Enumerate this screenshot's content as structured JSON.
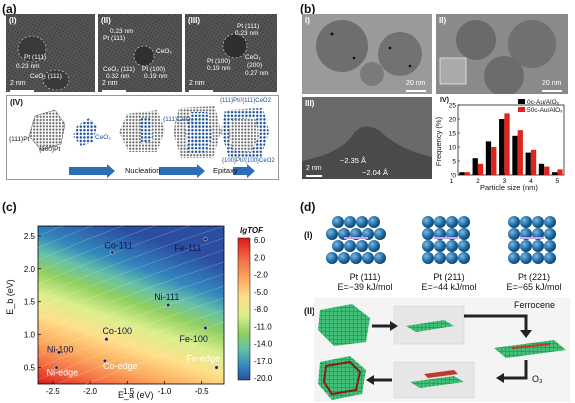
{
  "panels": {
    "a": {
      "label": "(a)",
      "tem": [
        {
          "roman": "(I)",
          "lines": [
            "Pt (111)",
            "0.23 nm",
            "CeO₂ (111)"
          ],
          "scale": "2 nm"
        },
        {
          "roman": "(II)",
          "lines": [
            "0.23 nm",
            "Pt (111)",
            "CeO₂",
            "CeO₂ (111)",
            "0.32 nm",
            "Pt (100)",
            "0.19 nm"
          ],
          "scale": "2 nm"
        },
        {
          "roman": "(III)",
          "lines": [
            "Pt (111)",
            "0.23 nm",
            "Pt (100)",
            "0.19 nm",
            "CeO₂",
            "(200)",
            "0.27 nm"
          ],
          "scale": "2 nm"
        }
      ],
      "scheme": {
        "roman": "(IV)",
        "labels": [
          "{111}Pt",
          "{100}Pt",
          "CeO₂",
          "{111}CeO₂",
          "{111}Pt//{111}CeO2",
          "{100}Pt//{100}CeO2"
        ],
        "steps": [
          "Nucleation",
          "Epitaxy"
        ]
      }
    },
    "b": {
      "label": "(b)",
      "images": [
        {
          "roman": "I)",
          "scale": "20 nm"
        },
        {
          "roman": "II)",
          "scale": "20 nm"
        },
        {
          "roman": "III)",
          "scale": "2 nm",
          "lines": [
            "~2.35 Å",
            "~2.04 Å"
          ]
        }
      ],
      "hist": {
        "roman": "IV)",
        "ylabel": "Frequency (%)",
        "xlabel": "Particle size (nm)",
        "legend": [
          "0c-Au/AlOₓ",
          "50c-Au/AlOₓ"
        ],
        "xticks": [
          "1",
          "2",
          "3",
          "4",
          "5"
        ],
        "yticks": [
          "0",
          "5",
          "10",
          "15",
          "20",
          "25"
        ]
      }
    },
    "c": {
      "label": "(c)",
      "colorbar_title": "lgTOF",
      "colorbar_ticks": [
        "6.0",
        "2.0",
        "-2.0",
        "-5.0",
        "-8.0",
        "-11.0",
        "-14.0",
        "-17.0",
        "-20.0"
      ],
      "ylabel": "E_b (eV)",
      "xlabel": "E_a (eV)",
      "xticks": [
        "-2.5",
        "-2.0",
        "-1.5",
        "-1.0",
        "-0.5"
      ],
      "yticks": [
        "2.5",
        "2.0",
        "1.5",
        "1.0",
        "0.5"
      ],
      "points": [
        "Fe-111",
        "Co-111",
        "Ni-111",
        "Fe-100",
        "Co-100",
        "Ni-100",
        "Co-edge",
        "Ni-edge",
        "Fe-edge"
      ]
    },
    "d": {
      "label": "(d)",
      "part1": "(I)",
      "part2": "(II)",
      "facets": [
        {
          "name": "Pt (111)",
          "energy": "E=−39 kJ/mol"
        },
        {
          "name": "Pt (211)",
          "energy": "E=−44 kJ/mol"
        },
        {
          "name": "Pt (221)",
          "energy": "E=−65 kJ/mol"
        }
      ],
      "reagents": [
        "Ferrocene",
        "O₃"
      ]
    }
  },
  "chart_data": [
    {
      "type": "bar",
      "title": "",
      "xlabel": "Particle size (nm)",
      "ylabel": "Frequency (%)",
      "ylim": [
        0,
        25
      ],
      "categories": [
        "1.5",
        "2.0",
        "2.5",
        "3.0",
        "3.5",
        "4.0",
        "4.5",
        "5.0"
      ],
      "series": [
        {
          "name": "0c-Au/AlOₓ",
          "values": [
            1,
            6,
            12,
            20,
            14,
            8,
            4,
            1
          ]
        },
        {
          "name": "50c-Au/AlOₓ",
          "values": [
            1,
            4,
            10,
            22,
            16,
            9,
            3,
            2
          ]
        }
      ],
      "colors": [
        "#000000",
        "#e0241b"
      ]
    },
    {
      "type": "heatmap",
      "title": "",
      "xlabel": "E_a (eV)",
      "ylabel": "E_b (eV)",
      "xlim": [
        -2.7,
        -0.2
      ],
      "ylim": [
        0.25,
        2.65
      ],
      "colorbar_label": "lgTOF",
      "colorbar_range": [
        -20.0,
        6.0
      ],
      "points": [
        {
          "label": "Fe-111",
          "x": -0.45,
          "y": 2.45
        },
        {
          "label": "Co-111",
          "x": -1.7,
          "y": 2.25
        },
        {
          "label": "Ni-111",
          "x": -0.95,
          "y": 1.45
        },
        {
          "label": "Fe-100",
          "x": -0.45,
          "y": 1.1
        },
        {
          "label": "Co-100",
          "x": -1.78,
          "y": 0.93
        },
        {
          "label": "Ni-100",
          "x": -2.42,
          "y": 0.73
        },
        {
          "label": "Co-edge",
          "x": -1.8,
          "y": 0.6
        },
        {
          "label": "Ni-edge",
          "x": -2.45,
          "y": 0.5
        },
        {
          "label": "Fe-edge",
          "x": -0.3,
          "y": 0.5
        }
      ]
    }
  ]
}
